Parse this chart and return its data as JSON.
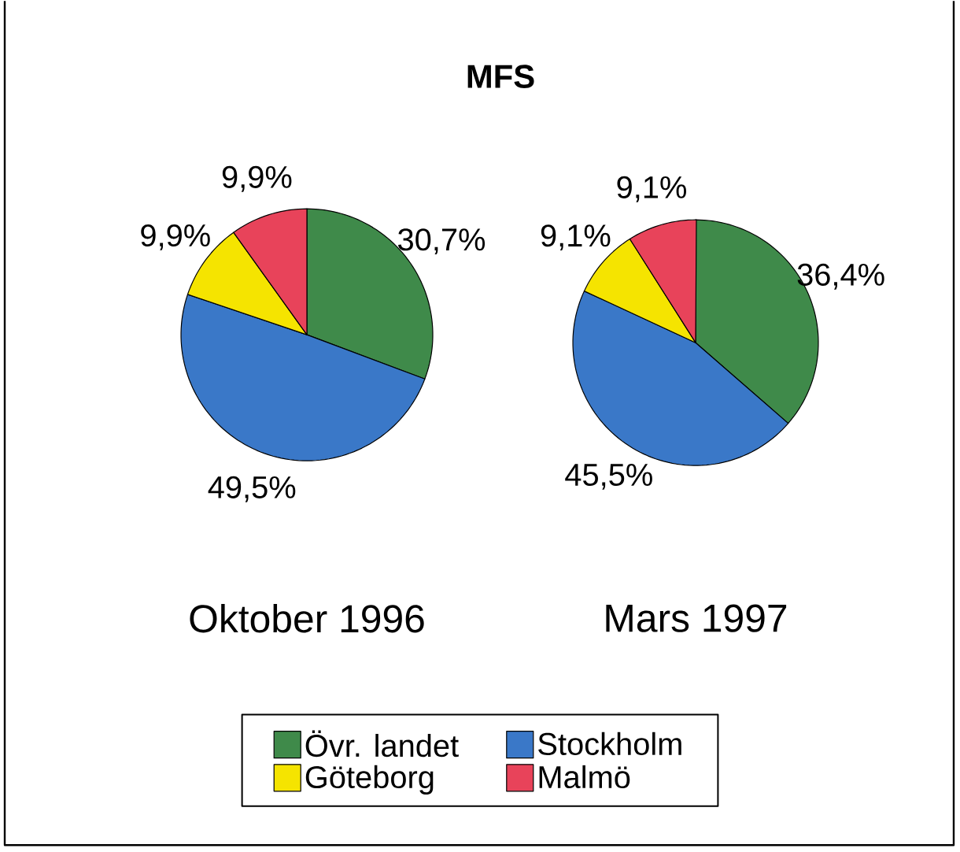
{
  "chart_data": {
    "type": "pie",
    "title": "MFS",
    "legend": "bottom",
    "categories": [
      "Övr. landet",
      "Stockholm",
      "Göteborg",
      "Malmö"
    ],
    "colors": [
      "#3f8a4a",
      "#3a78c8",
      "#f5e400",
      "#e8435a"
    ],
    "series": [
      {
        "name": "Oktober 1996",
        "values": [
          30.7,
          49.5,
          9.9,
          9.9
        ],
        "value_labels": [
          "30,7%",
          "49,5%",
          "9,9%",
          "9,9%"
        ]
      },
      {
        "name": "Mars 1997",
        "values": [
          36.4,
          45.5,
          9.1,
          9.1
        ],
        "value_labels": [
          "36,4%",
          "45,5%",
          "9,1%",
          "9,1%"
        ]
      }
    ]
  }
}
